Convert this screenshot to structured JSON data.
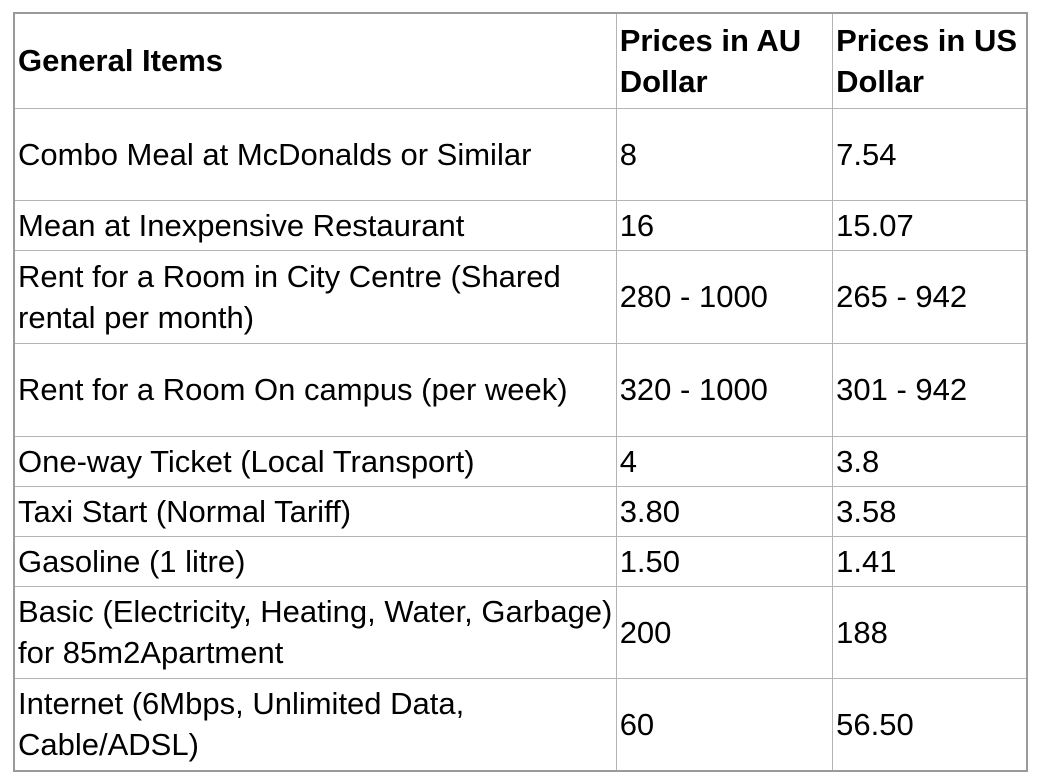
{
  "table": {
    "headers": [
      "General Items",
      "Prices in AU Dollar",
      "Prices in US Dollar"
    ],
    "rows": [
      {
        "item": "Combo Meal at McDonalds or Similar",
        "aud": "8",
        "usd": "7.54"
      },
      {
        "item": "Mean at Inexpensive Restaurant",
        "aud": "16",
        "usd": "15.07"
      },
      {
        "item": "Rent for a Room in City Centre (Shared rental per month)",
        "aud": "280 - 1000",
        "usd": "265 - 942"
      },
      {
        "item": "Rent for a Room On campus (per week)",
        "aud": "320 - 1000",
        "usd": "301 - 942"
      },
      {
        "item": "One-way Ticket (Local Transport)",
        "aud": "4",
        "usd": "3.8"
      },
      {
        "item": "Taxi Start (Normal Tariff)",
        "aud": "3.80",
        "usd": "3.58"
      },
      {
        "item": "Gasoline (1 litre)",
        "aud": "1.50",
        "usd": "1.41"
      },
      {
        "item": "Basic (Electricity, Heating, Water, Garbage) for 85m2Apartment",
        "aud": "200",
        "usd": "188"
      },
      {
        "item": "Internet (6Mbps, Unlimited Data, Cable/ADSL)",
        "aud": "60",
        "usd": "56.50"
      }
    ]
  }
}
